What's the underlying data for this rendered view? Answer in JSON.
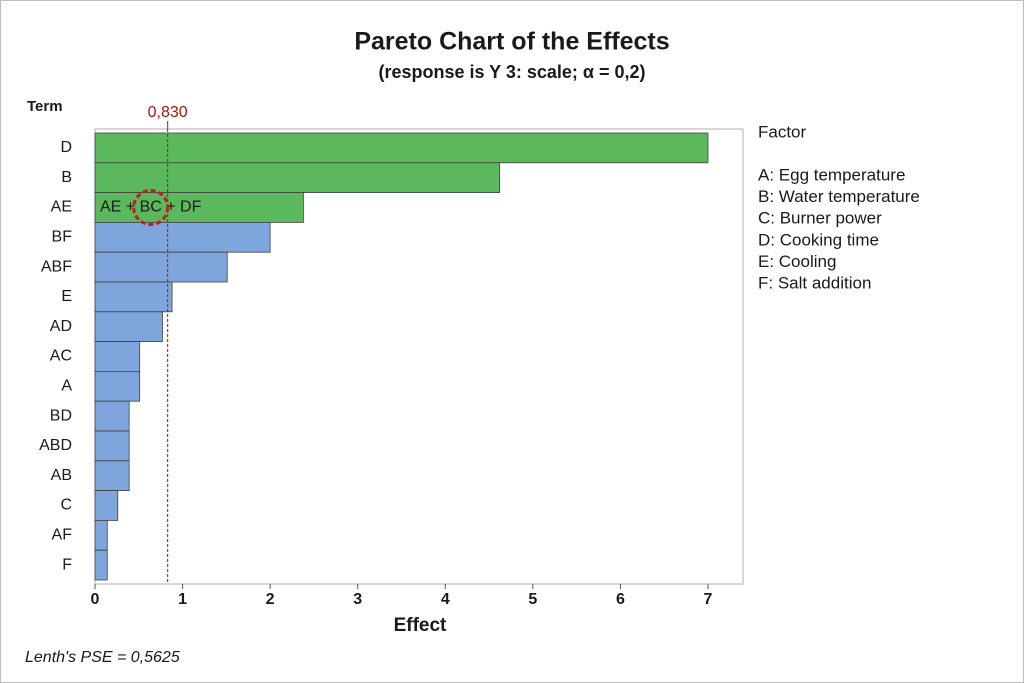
{
  "chart_data": {
    "type": "bar",
    "orientation": "horizontal",
    "title": "Pareto Chart of the Effects",
    "subtitle": "(response is Y 3: scale; α = 0,2)",
    "xlabel": "Effect",
    "ylabel": "Term",
    "categories": [
      "D",
      "B",
      "AE",
      "BF",
      "ABF",
      "E",
      "AD",
      "AC",
      "A",
      "BD",
      "ABD",
      "AB",
      "C",
      "AF",
      "F"
    ],
    "values": [
      7.0,
      4.62,
      2.38,
      2.0,
      1.51,
      0.88,
      0.77,
      0.51,
      0.51,
      0.39,
      0.39,
      0.39,
      0.26,
      0.14,
      0.14
    ],
    "colors": [
      "#5cb85c",
      "#5cb85c",
      "#5cb85c",
      "#7fa6dc",
      "#7fa6dc",
      "#7fa6dc",
      "#7fa6dc",
      "#7fa6dc",
      "#7fa6dc",
      "#7fa6dc",
      "#7fa6dc",
      "#7fa6dc",
      "#7fa6dc",
      "#7fa6dc",
      "#7fa6dc"
    ],
    "xlim": [
      0,
      7.4
    ],
    "xticks": [
      0,
      1,
      2,
      3,
      4,
      5,
      6,
      7
    ],
    "reference_line": {
      "value": 0.83,
      "label": "0,830",
      "color": "#a31515"
    },
    "annotation": "AE + BC + DF",
    "legend": {
      "title": "Factor",
      "items": [
        "A: Egg temperature",
        "B: Water temperature",
        "C: Burner power",
        "D: Cooking time",
        "E: Cooling",
        "F: Salt addition"
      ]
    },
    "footnote": "Lenth's PSE = 0,5625"
  }
}
